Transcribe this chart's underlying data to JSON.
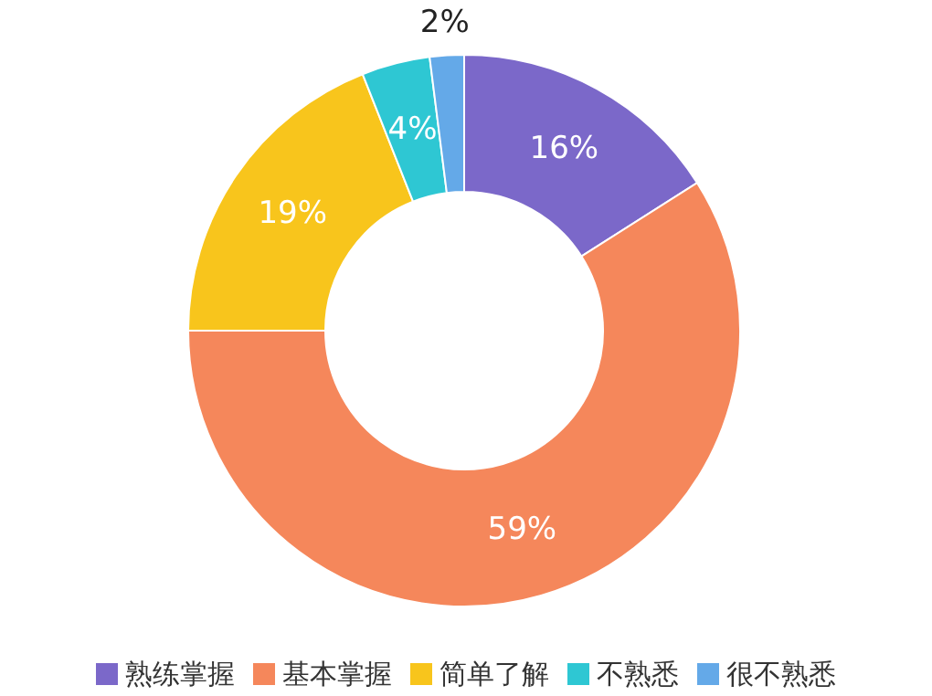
{
  "chart_data": {
    "type": "donut",
    "categories": [
      "熟练掌握",
      "基本掌握",
      "简单了解",
      "不熟悉",
      "很不熟悉"
    ],
    "values": [
      16,
      59,
      19,
      4,
      2
    ],
    "colors": [
      "#7b68c9",
      "#f5875b",
      "#f8c51c",
      "#2ec7d3",
      "#64a9e8"
    ],
    "value_labels": [
      "16%",
      "59%",
      "19%",
      "4%",
      "2%"
    ],
    "legend": "bottom"
  }
}
